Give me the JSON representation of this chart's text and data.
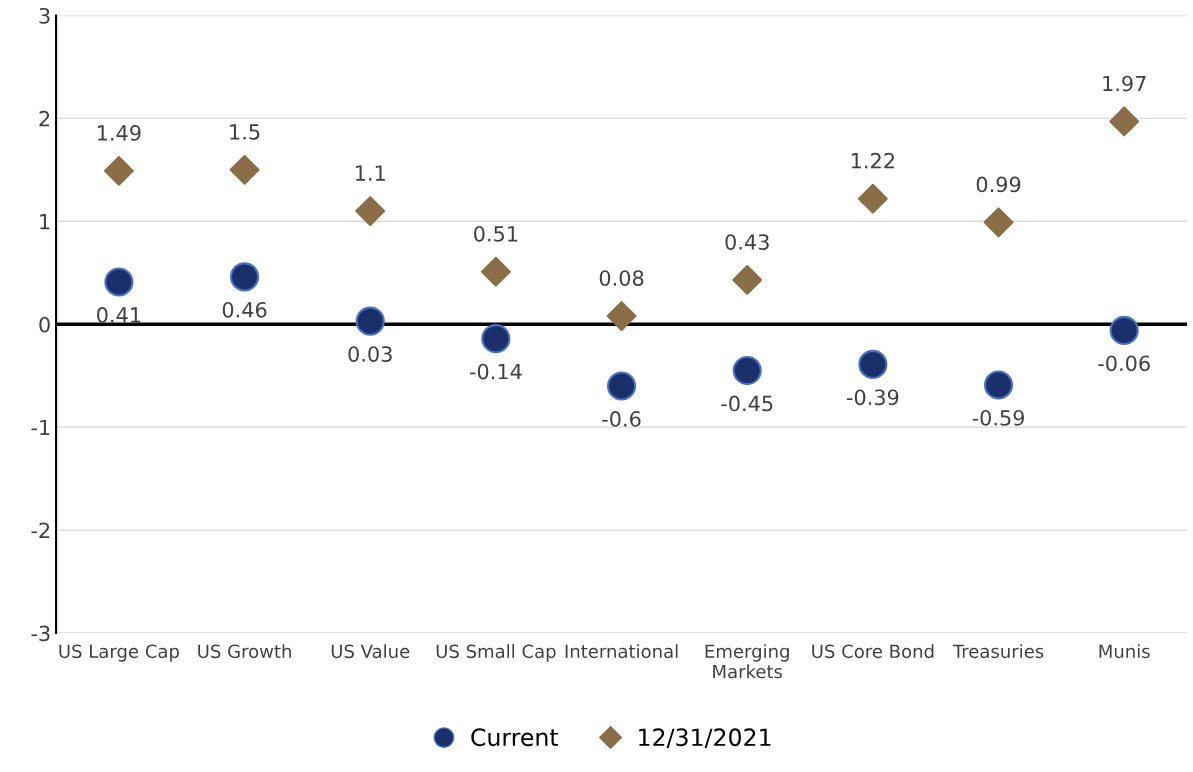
{
  "chart_data": {
    "type": "scatter",
    "categories": [
      "US Large Cap",
      "US Growth",
      "US Value",
      "US Small Cap",
      "International",
      "Emerging Markets",
      "US Core Bond",
      "Treasuries",
      "Munis"
    ],
    "series": [
      {
        "name": "Current",
        "color": "#1b2f6b",
        "marker": "circle",
        "values": [
          0.41,
          0.46,
          0.03,
          -0.14,
          -0.6,
          -0.45,
          -0.39,
          -0.59,
          -0.06
        ]
      },
      {
        "name": "12/31/2021",
        "color": "#8b6d47",
        "marker": "diamond",
        "values": [
          1.49,
          1.5,
          1.1,
          0.51,
          0.08,
          0.43,
          1.22,
          0.99,
          1.97
        ]
      }
    ],
    "ylim": [
      -3,
      3
    ],
    "yticks": [
      -3,
      -2,
      -1,
      0,
      1,
      2,
      3
    ],
    "ref_lines": [
      {
        "axis": "y",
        "value": 0,
        "color": "#000000"
      }
    ],
    "grid": "y",
    "legend": "bottom",
    "data_labels": true
  }
}
